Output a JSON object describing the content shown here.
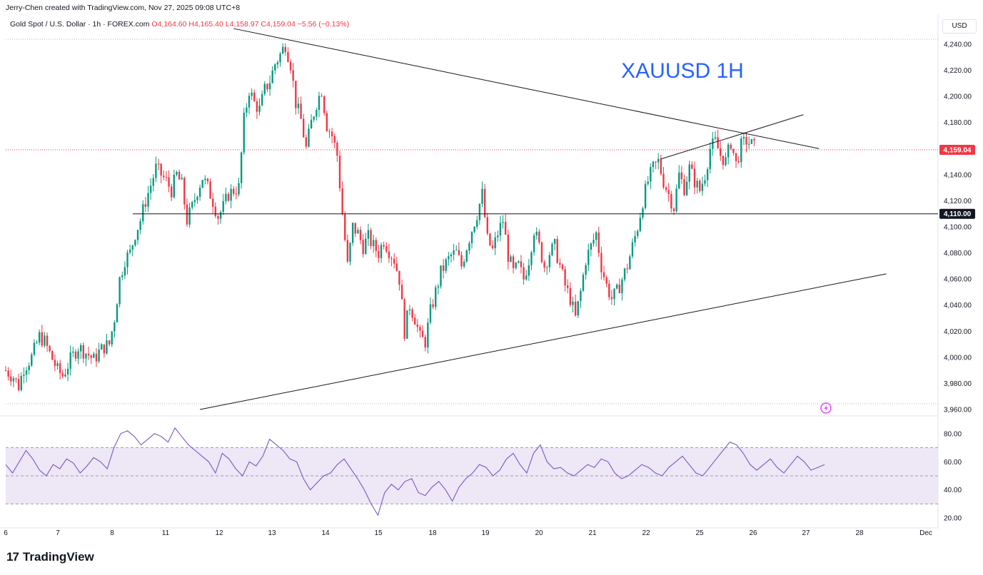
{
  "header": {
    "credit": "Jerry-Chen created with TradingView.com, Nov 27, 2025 09:08 UTC+8",
    "symbol": "Gold Spot / U.S. Dollar · 1h · FOREX.com",
    "open": "O4,164.60",
    "high": "H4,165.40",
    "low": "L4,158.97",
    "close": "C4,159.04",
    "change": "−5.56 (−0.13%)"
  },
  "currency": "USD",
  "footer": {
    "logo_mark": "17",
    "brand": "TradingView"
  },
  "colors": {
    "up": "#089981",
    "down": "#f23645",
    "rsi": "#7e57c2",
    "rsi_band": "#ede7f6",
    "title": "#2962ff"
  },
  "chart_data": [
    {
      "type": "candlestick",
      "title": "XAUUSD 1H",
      "y_ticks": [
        "4,240.00",
        "4,220.00",
        "4,200.00",
        "4,180.00",
        "4,160.00",
        "4,140.00",
        "4,120.00",
        "4,100.00",
        "4,080.00",
        "4,060.00",
        "4,040.00",
        "4,020.00",
        "4,000.00",
        "3,980.00",
        "3,960.00"
      ],
      "ylim": [
        3960,
        4248
      ],
      "x_ticks": [
        "6",
        "7",
        "8",
        "11",
        "12",
        "13",
        "14",
        "15",
        "18",
        "19",
        "20",
        "21",
        "22",
        "25",
        "26",
        "27",
        "28",
        "Dec"
      ],
      "last_price": 4159.04,
      "last_price_label": "4,159.04",
      "level": 4110,
      "level_label": "4,110.00",
      "series": [
        {
          "x": 0,
          "close": 3990
        },
        {
          "x": 3,
          "close": 3985
        },
        {
          "x": 5,
          "close": 3978
        },
        {
          "x": 7,
          "close": 3992
        },
        {
          "x": 10,
          "close": 4000
        },
        {
          "x": 13,
          "close": 4016
        },
        {
          "x": 15,
          "close": 4012
        },
        {
          "x": 17,
          "close": 4003
        },
        {
          "x": 20,
          "close": 3990
        },
        {
          "x": 22,
          "close": 3986
        },
        {
          "x": 25,
          "close": 3998
        },
        {
          "x": 28,
          "close": 4008
        },
        {
          "x": 30,
          "close": 4005
        },
        {
          "x": 32,
          "close": 4002
        },
        {
          "x": 34,
          "close": 3998
        },
        {
          "x": 36,
          "close": 4004
        },
        {
          "x": 38,
          "close": 4008
        },
        {
          "x": 40,
          "close": 4010
        },
        {
          "x": 42,
          "close": 4030
        },
        {
          "x": 44,
          "close": 4060
        },
        {
          "x": 46,
          "close": 4075
        },
        {
          "x": 48,
          "close": 4080
        },
        {
          "x": 50,
          "close": 4095
        },
        {
          "x": 52,
          "close": 4105
        },
        {
          "x": 54,
          "close": 4120
        },
        {
          "x": 56,
          "close": 4132
        },
        {
          "x": 58,
          "close": 4145
        },
        {
          "x": 60,
          "close": 4140
        },
        {
          "x": 62,
          "close": 4135
        },
        {
          "x": 64,
          "close": 4128
        },
        {
          "x": 66,
          "close": 4140
        },
        {
          "x": 68,
          "close": 4132
        },
        {
          "x": 70,
          "close": 4105
        },
        {
          "x": 72,
          "close": 4115
        },
        {
          "x": 74,
          "close": 4128
        },
        {
          "x": 76,
          "close": 4138
        },
        {
          "x": 78,
          "close": 4130
        },
        {
          "x": 80,
          "close": 4120
        },
        {
          "x": 82,
          "close": 4108
        },
        {
          "x": 84,
          "close": 4115
        },
        {
          "x": 86,
          "close": 4125
        },
        {
          "x": 88,
          "close": 4128
        },
        {
          "x": 90,
          "close": 4130
        },
        {
          "x": 92,
          "close": 4182
        },
        {
          "x": 94,
          "close": 4205
        },
        {
          "x": 96,
          "close": 4195
        },
        {
          "x": 98,
          "close": 4190
        },
        {
          "x": 100,
          "close": 4205
        },
        {
          "x": 102,
          "close": 4212
        },
        {
          "x": 104,
          "close": 4225
        },
        {
          "x": 106,
          "close": 4232
        },
        {
          "x": 108,
          "close": 4240
        },
        {
          "x": 110,
          "close": 4225
        },
        {
          "x": 112,
          "close": 4195
        },
        {
          "x": 114,
          "close": 4182
        },
        {
          "x": 116,
          "close": 4160
        },
        {
          "x": 118,
          "close": 4180
        },
        {
          "x": 120,
          "close": 4195
        },
        {
          "x": 122,
          "close": 4205
        },
        {
          "x": 124,
          "close": 4178
        },
        {
          "x": 126,
          "close": 4170
        },
        {
          "x": 128,
          "close": 4155
        },
        {
          "x": 130,
          "close": 4110
        },
        {
          "x": 132,
          "close": 4070
        },
        {
          "x": 134,
          "close": 4100
        },
        {
          "x": 136,
          "close": 4095
        },
        {
          "x": 138,
          "close": 4085
        },
        {
          "x": 140,
          "close": 4092
        },
        {
          "x": 142,
          "close": 4085
        },
        {
          "x": 144,
          "close": 4080
        },
        {
          "x": 146,
          "close": 4090
        },
        {
          "x": 148,
          "close": 4082
        },
        {
          "x": 150,
          "close": 4075
        },
        {
          "x": 152,
          "close": 4060
        },
        {
          "x": 154,
          "close": 4020
        },
        {
          "x": 156,
          "close": 4040
        },
        {
          "x": 158,
          "close": 4030
        },
        {
          "x": 160,
          "close": 4015
        },
        {
          "x": 162,
          "close": 4012
        },
        {
          "x": 164,
          "close": 4035
        },
        {
          "x": 166,
          "close": 4050
        },
        {
          "x": 168,
          "close": 4065
        },
        {
          "x": 170,
          "close": 4072
        },
        {
          "x": 172,
          "close": 4078
        },
        {
          "x": 174,
          "close": 4080
        },
        {
          "x": 176,
          "close": 4070
        },
        {
          "x": 178,
          "close": 4085
        },
        {
          "x": 180,
          "close": 4098
        },
        {
          "x": 182,
          "close": 4110
        },
        {
          "x": 184,
          "close": 4125
        },
        {
          "x": 186,
          "close": 4090
        },
        {
          "x": 188,
          "close": 4082
        },
        {
          "x": 190,
          "close": 4095
        },
        {
          "x": 192,
          "close": 4105
        },
        {
          "x": 194,
          "close": 4078
        },
        {
          "x": 196,
          "close": 4065
        },
        {
          "x": 198,
          "close": 4070
        },
        {
          "x": 200,
          "close": 4060
        },
        {
          "x": 202,
          "close": 4075
        },
        {
          "x": 204,
          "close": 4098
        },
        {
          "x": 206,
          "close": 4085
        },
        {
          "x": 208,
          "close": 4070
        },
        {
          "x": 210,
          "close": 4080
        },
        {
          "x": 212,
          "close": 4085
        },
        {
          "x": 214,
          "close": 4070
        },
        {
          "x": 216,
          "close": 4055
        },
        {
          "x": 218,
          "close": 4045
        },
        {
          "x": 220,
          "close": 4030
        },
        {
          "x": 222,
          "close": 4050
        },
        {
          "x": 224,
          "close": 4075
        },
        {
          "x": 226,
          "close": 4085
        },
        {
          "x": 228,
          "close": 4095
        },
        {
          "x": 230,
          "close": 4070
        },
        {
          "x": 232,
          "close": 4055
        },
        {
          "x": 234,
          "close": 4045
        },
        {
          "x": 236,
          "close": 4050
        },
        {
          "x": 238,
          "close": 4060
        },
        {
          "x": 240,
          "close": 4070
        },
        {
          "x": 242,
          "close": 4085
        },
        {
          "x": 244,
          "close": 4100
        },
        {
          "x": 246,
          "close": 4120
        },
        {
          "x": 248,
          "close": 4135
        },
        {
          "x": 250,
          "close": 4145
        },
        {
          "x": 252,
          "close": 4150
        },
        {
          "x": 254,
          "close": 4135
        },
        {
          "x": 256,
          "close": 4125
        },
        {
          "x": 258,
          "close": 4115
        },
        {
          "x": 260,
          "close": 4140
        },
        {
          "x": 262,
          "close": 4130
        },
        {
          "x": 264,
          "close": 4145
        },
        {
          "x": 266,
          "close": 4135
        },
        {
          "x": 268,
          "close": 4128
        },
        {
          "x": 270,
          "close": 4140
        },
        {
          "x": 272,
          "close": 4160
        },
        {
          "x": 274,
          "close": 4165
        },
        {
          "x": 276,
          "close": 4155
        },
        {
          "x": 278,
          "close": 4150
        },
        {
          "x": 280,
          "close": 4165
        },
        {
          "x": 282,
          "close": 4148
        },
        {
          "x": 284,
          "close": 4162
        },
        {
          "x": 286,
          "close": 4166
        },
        {
          "x": 288,
          "close": 4163
        },
        {
          "x": 290,
          "close": 4159
        }
      ],
      "trendlines": [
        {
          "from": [
            88,
            4252
          ],
          "to": [
            314,
            4160
          ]
        },
        {
          "from": [
            75,
            3960
          ],
          "to": [
            340,
            4064
          ]
        },
        {
          "from": [
            253,
            4152
          ],
          "to": [
            308,
            4186
          ]
        }
      ]
    },
    {
      "type": "line",
      "y_ticks": [
        "80.00",
        "60.00",
        "40.00",
        "20.00"
      ],
      "ylim": [
        15,
        86
      ],
      "bands": [
        30,
        50,
        70
      ],
      "values": [
        58,
        52,
        60,
        68,
        62,
        54,
        50,
        58,
        55,
        62,
        59,
        52,
        57,
        63,
        60,
        55,
        70,
        80,
        82,
        78,
        72,
        76,
        80,
        78,
        74,
        84,
        78,
        72,
        68,
        64,
        60,
        52,
        66,
        62,
        55,
        50,
        60,
        57,
        64,
        76,
        72,
        68,
        62,
        60,
        48,
        40,
        45,
        50,
        52,
        58,
        62,
        55,
        48,
        40,
        30,
        22,
        38,
        44,
        40,
        46,
        48,
        38,
        36,
        42,
        46,
        40,
        32,
        42,
        48,
        52,
        58,
        56,
        50,
        54,
        62,
        66,
        58,
        52,
        66,
        72,
        60,
        55,
        56,
        52,
        50,
        54,
        58,
        56,
        62,
        60,
        52,
        48,
        50,
        54,
        58,
        56,
        52,
        50,
        56,
        60,
        64,
        58,
        52,
        50,
        56,
        62,
        68,
        74,
        72,
        66,
        58,
        54,
        58,
        62,
        56,
        52,
        58,
        64,
        60,
        54,
        56,
        58
      ]
    }
  ]
}
